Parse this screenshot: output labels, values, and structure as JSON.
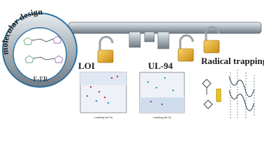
{
  "design_label": "molecular design",
  "compound": "F-FR",
  "panels": [
    {
      "title": "LOI",
      "x_label": "Loading (wt.%)"
    },
    {
      "title": "UL-94",
      "x_label": "Loading (wt.%)"
    },
    {
      "title": "Radical trapping"
    }
  ]
}
